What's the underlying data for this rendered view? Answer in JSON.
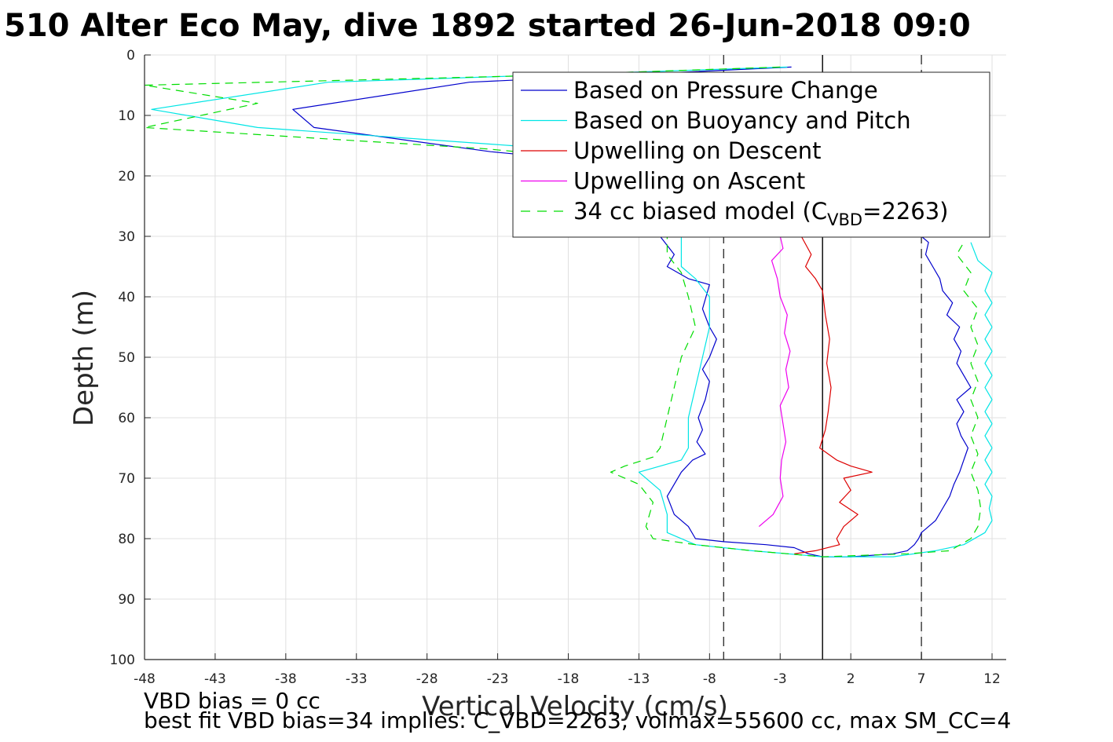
{
  "chart_data": {
    "type": "line",
    "title": "510 Alter Eco May, dive 1892 started 26-Jun-2018 09:0",
    "xlabel": "Vertical Velocity (cm/s)",
    "ylabel": "Depth (m)",
    "xlim": [
      -48,
      13
    ],
    "ylim": [
      100,
      0
    ],
    "y_reversed": true,
    "grid": true,
    "xticks": [
      -48,
      -43,
      -38,
      -33,
      -28,
      -23,
      -18,
      -13,
      -8,
      -3,
      2,
      7,
      12
    ],
    "yticks": [
      0,
      10,
      20,
      30,
      40,
      50,
      60,
      70,
      80,
      90,
      100
    ],
    "legend_position": "top-right",
    "legend": [
      {
        "label": "Based on Pressure Change",
        "color": "#0000cc",
        "dash": "solid"
      },
      {
        "label": "Based on Buoyancy and Pitch",
        "color": "#00e5e5",
        "dash": "solid"
      },
      {
        "label": "Upwelling on Descent",
        "color": "#dd0000",
        "dash": "solid"
      },
      {
        "label": "Upwelling on Ascent",
        "color": "#ee00ee",
        "dash": "solid"
      },
      {
        "label_pre": "34 cc biased model (C",
        "label_sub": "VBD",
        "label_post": "=2263)",
        "color": "#00dd00",
        "dash": "dashed"
      }
    ],
    "reference_lines": [
      {
        "x": -7,
        "style": "dashed",
        "color": "#333333"
      },
      {
        "x": 0,
        "style": "solid",
        "color": "#000000"
      },
      {
        "x": 7,
        "style": "dashed",
        "color": "#333333"
      }
    ],
    "series": [
      {
        "name": "Based on Pressure Change",
        "color": "#0000cc",
        "dash": "solid",
        "points": [
          [
            -2.2,
            2
          ],
          [
            -25,
            4.5
          ],
          [
            -37.5,
            9
          ],
          [
            -36,
            12
          ],
          [
            -23.5,
            16
          ],
          [
            -19,
            17
          ],
          [
            -11.5,
            30
          ],
          [
            -10.5,
            33
          ],
          [
            -11,
            35
          ],
          [
            -9.5,
            37
          ],
          [
            -8,
            38
          ],
          [
            -8.5,
            42
          ],
          [
            -8,
            45
          ],
          [
            -7.5,
            47
          ],
          [
            -8,
            50
          ],
          [
            -8.5,
            52
          ],
          [
            -8,
            54
          ],
          [
            -8.3,
            57
          ],
          [
            -8.8,
            60
          ],
          [
            -8.5,
            62
          ],
          [
            -8.9,
            64
          ],
          [
            -8.3,
            66
          ],
          [
            -9.2,
            67
          ],
          [
            -10,
            69
          ],
          [
            -11,
            73
          ],
          [
            -10.5,
            76
          ],
          [
            -9.5,
            78
          ],
          [
            -9,
            80
          ],
          [
            -7,
            80.5
          ],
          [
            -4,
            81
          ],
          [
            -2,
            81.5
          ],
          [
            -1,
            82.5
          ],
          [
            0,
            83
          ],
          [
            2,
            83
          ],
          [
            5,
            82.5
          ],
          [
            6,
            82
          ],
          [
            6.5,
            81
          ],
          [
            6.8,
            80
          ],
          [
            7,
            79
          ],
          [
            8,
            77
          ],
          [
            8.5,
            75
          ],
          [
            9,
            73
          ],
          [
            9.3,
            71
          ],
          [
            9.7,
            69
          ],
          [
            10,
            67
          ],
          [
            10.3,
            65
          ],
          [
            9.8,
            63
          ],
          [
            9.5,
            61
          ],
          [
            10,
            59
          ],
          [
            9.5,
            57
          ],
          [
            10.5,
            55
          ],
          [
            10,
            53
          ],
          [
            9.5,
            51
          ],
          [
            9.8,
            49
          ],
          [
            9.3,
            47
          ],
          [
            9.7,
            45
          ],
          [
            8.8,
            43
          ],
          [
            9.2,
            41
          ],
          [
            8.5,
            39
          ],
          [
            8.3,
            37
          ],
          [
            7.8,
            35
          ],
          [
            7.3,
            33
          ],
          [
            7.5,
            31
          ],
          [
            7,
            30
          ]
        ]
      },
      {
        "name": "Based on Buoyancy and Pitch",
        "color": "#00e5e5",
        "dash": "solid",
        "points": [
          [
            -2.5,
            2
          ],
          [
            -35,
            4.5
          ],
          [
            -47.5,
            9
          ],
          [
            -40,
            12
          ],
          [
            -22,
            15
          ],
          [
            -15,
            17
          ],
          [
            -10,
            30
          ],
          [
            -10,
            35
          ],
          [
            -9,
            37
          ],
          [
            -8,
            40
          ],
          [
            -8,
            45
          ],
          [
            -8.5,
            50
          ],
          [
            -9,
            55
          ],
          [
            -9.5,
            60
          ],
          [
            -9.5,
            65
          ],
          [
            -10,
            67
          ],
          [
            -13,
            69
          ],
          [
            -11.5,
            72
          ],
          [
            -11,
            76
          ],
          [
            -11,
            79
          ],
          [
            -9,
            81
          ],
          [
            -5,
            82
          ],
          [
            0,
            83
          ],
          [
            5,
            83
          ],
          [
            8,
            82
          ],
          [
            10,
            81
          ],
          [
            11.5,
            79
          ],
          [
            12,
            77
          ],
          [
            11.8,
            75
          ],
          [
            12,
            73
          ],
          [
            11.5,
            71
          ],
          [
            12,
            69
          ],
          [
            11.5,
            67
          ],
          [
            12,
            65
          ],
          [
            11.5,
            63
          ],
          [
            12,
            61
          ],
          [
            11.5,
            59
          ],
          [
            12,
            57
          ],
          [
            11.5,
            55
          ],
          [
            12,
            53
          ],
          [
            11.5,
            51
          ],
          [
            12,
            49
          ],
          [
            11.5,
            47
          ],
          [
            12,
            45
          ],
          [
            11.5,
            43
          ],
          [
            12,
            41
          ],
          [
            11.5,
            39
          ],
          [
            12,
            36
          ],
          [
            11,
            34
          ],
          [
            10.5,
            31
          ]
        ]
      },
      {
        "name": "Upwelling on Descent",
        "color": "#dd0000",
        "dash": "solid",
        "points": [
          [
            -1.5,
            30
          ],
          [
            -0.8,
            33
          ],
          [
            -1.2,
            35
          ],
          [
            -0.5,
            37
          ],
          [
            0,
            39
          ],
          [
            0.2,
            43
          ],
          [
            0.5,
            47
          ],
          [
            0.3,
            51
          ],
          [
            0.6,
            55
          ],
          [
            0.4,
            59
          ],
          [
            0.2,
            62
          ],
          [
            -0.2,
            65
          ],
          [
            1,
            67
          ],
          [
            2,
            68
          ],
          [
            3.5,
            69
          ],
          [
            1.5,
            70
          ],
          [
            2,
            72
          ],
          [
            1.2,
            74
          ],
          [
            2.5,
            76
          ],
          [
            1.5,
            78
          ],
          [
            1,
            80
          ],
          [
            1.2,
            81
          ],
          [
            -0.5,
            82
          ],
          [
            -2,
            82.5
          ]
        ]
      },
      {
        "name": "Upwelling on Ascent",
        "color": "#ee00ee",
        "dash": "solid",
        "points": [
          [
            -4.5,
            78
          ],
          [
            -3.5,
            76
          ],
          [
            -2.8,
            73
          ],
          [
            -3,
            70
          ],
          [
            -2.9,
            67
          ],
          [
            -2.6,
            64
          ],
          [
            -2.8,
            61
          ],
          [
            -3,
            58
          ],
          [
            -2.4,
            55
          ],
          [
            -2.6,
            52
          ],
          [
            -2.3,
            49
          ],
          [
            -2.7,
            46
          ],
          [
            -2.5,
            43
          ],
          [
            -3,
            40
          ],
          [
            -3.2,
            37
          ],
          [
            -3.6,
            34
          ],
          [
            -2.8,
            32
          ],
          [
            -3,
            30
          ]
        ]
      },
      {
        "name": "34 cc biased model (CVBD=2263)",
        "color": "#00dd00",
        "dash": "dashed",
        "points": [
          [
            -3,
            2
          ],
          [
            -22,
            3.5
          ],
          [
            -48,
            5
          ],
          [
            -40,
            8
          ],
          [
            -48,
            12
          ],
          [
            -24,
            15.5
          ],
          [
            -17,
            17
          ],
          [
            -11,
            30
          ],
          [
            -11,
            33
          ],
          [
            -10,
            36
          ],
          [
            -9.5,
            40
          ],
          [
            -9,
            45
          ],
          [
            -10,
            50
          ],
          [
            -10.5,
            55
          ],
          [
            -11,
            60
          ],
          [
            -11.5,
            65
          ],
          [
            -12,
            66.5
          ],
          [
            -14,
            68
          ],
          [
            -15,
            69
          ],
          [
            -13,
            71
          ],
          [
            -12,
            74
          ],
          [
            -12.5,
            78
          ],
          [
            -12,
            80
          ],
          [
            -9,
            81
          ],
          [
            -5,
            82
          ],
          [
            0,
            83
          ],
          [
            6,
            82.5
          ],
          [
            9,
            82
          ],
          [
            10.5,
            80
          ],
          [
            11,
            78
          ],
          [
            11.2,
            75
          ],
          [
            11,
            72
          ],
          [
            10.5,
            69
          ],
          [
            11,
            66
          ],
          [
            10.5,
            63
          ],
          [
            11,
            60
          ],
          [
            10.5,
            57
          ],
          [
            11,
            54
          ],
          [
            10.5,
            51
          ],
          [
            11,
            48
          ],
          [
            10.5,
            45
          ],
          [
            11,
            42
          ],
          [
            10,
            39
          ],
          [
            10.5,
            36
          ],
          [
            9.5,
            33
          ],
          [
            10,
            31
          ]
        ]
      }
    ],
    "annotations": [
      "VBD bias = 0 cc",
      "best fit VBD bias=34 implies: C_VBD=2263, volmax=55600 cc, max SM_CC=4"
    ]
  }
}
